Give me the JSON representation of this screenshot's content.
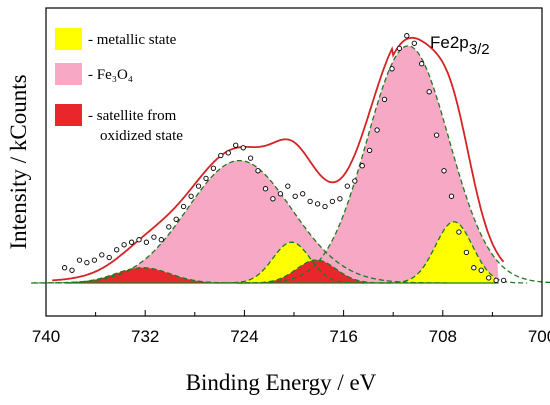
{
  "chart_data": {
    "type": "line",
    "xlabel": "Binding Energy / eV",
    "ylabel": "Intensity / kCounts",
    "xlim": [
      740,
      700
    ],
    "x_reversed": true,
    "x_ticks": [
      "740",
      "732",
      "724",
      "716",
      "708",
      "700"
    ],
    "ylim": [
      0,
      100
    ],
    "annotation": {
      "main": "Fe2p",
      "sub": "3/2"
    },
    "legend": [
      {
        "color": "#ffff00",
        "prefix": "- ",
        "lines": [
          "metallic state"
        ]
      },
      {
        "color": "#f7a8c4",
        "prefix": "- ",
        "lines": [
          "Fe₃O₄"
        ]
      },
      {
        "color": "#e8262b",
        "prefix": "- ",
        "lines": [
          "satellite from",
          "oxidized state"
        ]
      }
    ],
    "baseline": 0,
    "peaks": [
      {
        "name": "metallic state",
        "color": "#ffff00",
        "center": 707.1,
        "height": 24,
        "width": 1.5
      },
      {
        "name": "metallic state",
        "color": "#ffff00",
        "center": 720.2,
        "height": 16,
        "width": 1.5
      },
      {
        "name": "Fe3O4",
        "color": "#f7a8c4",
        "center": 710.8,
        "height": 93,
        "width": 3.3
      },
      {
        "name": "Fe3O4",
        "color": "#f7a8c4",
        "center": 724.4,
        "height": 48,
        "width": 4.2
      },
      {
        "name": "satellite from oxidized state",
        "color": "#e8262b",
        "center": 732.2,
        "height": 6,
        "width": 2.2
      },
      {
        "name": "satellite from oxidized state",
        "color": "#e8262b",
        "center": 718.2,
        "height": 9,
        "width": 1.6
      }
    ],
    "background_offset": 5,
    "data_points_x": [
      738.5,
      737.9,
      737.3,
      736.7,
      736.1,
      735.5,
      734.9,
      734.3,
      733.7,
      733.1,
      732.5,
      731.9,
      731.3,
      730.7,
      730.1,
      729.5,
      728.9,
      728.3,
      727.7,
      727.1,
      726.5,
      725.9,
      725.3,
      724.7,
      724.1,
      723.5,
      722.9,
      722.3,
      721.7,
      721.1,
      720.5,
      719.9,
      719.3,
      718.7,
      718.1,
      717.5,
      716.9,
      716.3,
      715.7,
      715.1,
      714.5,
      713.9,
      713.3,
      712.7,
      712.1,
      711.5,
      710.9,
      710.3,
      709.7,
      709.1,
      708.5,
      707.9,
      707.3,
      706.7,
      706.1,
      705.5,
      704.9,
      704.3,
      703.7,
      703.1
    ],
    "data_points_y": [
      6,
      5,
      9,
      8,
      9,
      11,
      10,
      13,
      15,
      16,
      17,
      16,
      18,
      17,
      22,
      25,
      30,
      34,
      38,
      41,
      45,
      50,
      51,
      54,
      53,
      49,
      44,
      37,
      33,
      35,
      38,
      34,
      35,
      32,
      31,
      30,
      32,
      33,
      38,
      40,
      46,
      52,
      60,
      72,
      84,
      92,
      97,
      94,
      86,
      75,
      58,
      44,
      34,
      20,
      12,
      6,
      5,
      2,
      1,
      1
    ]
  }
}
